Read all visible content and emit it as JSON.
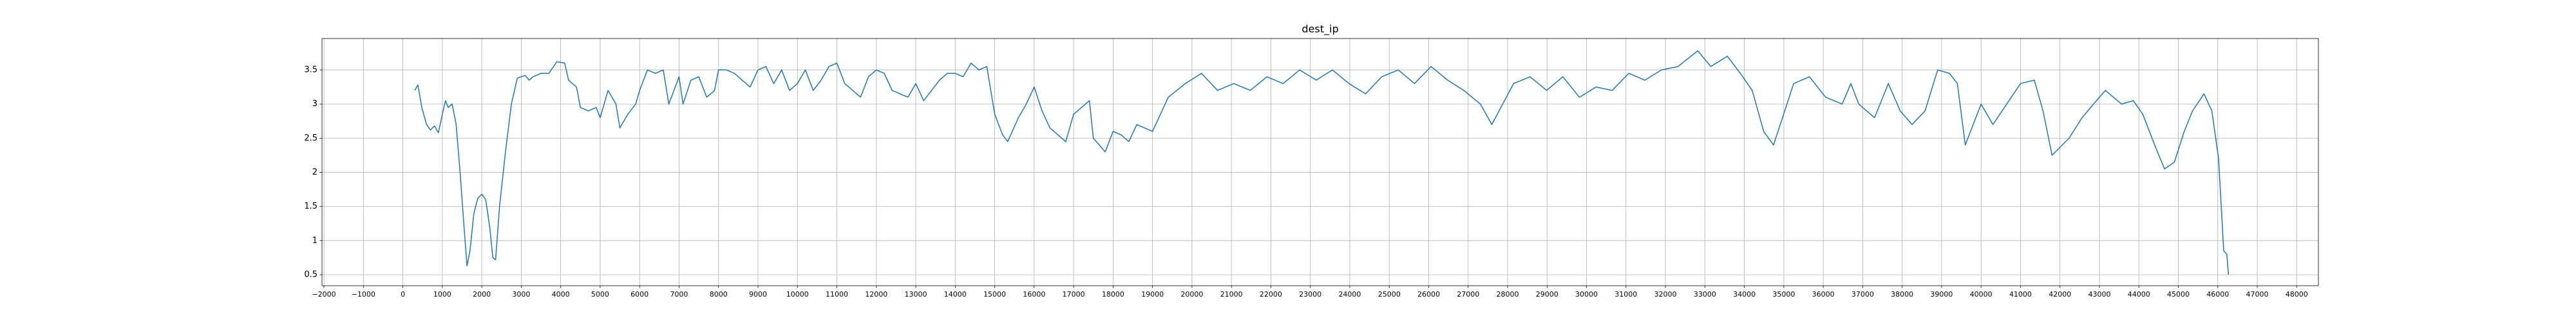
{
  "chart_data": {
    "type": "line",
    "title": "dest_ip",
    "x": [
      300,
      380,
      480,
      600,
      700,
      800,
      900,
      1000,
      1080,
      1150,
      1250,
      1350,
      1450,
      1550,
      1625,
      1700,
      1800,
      1900,
      2000,
      2100,
      2200,
      2280,
      2350,
      2450,
      2600,
      2750,
      2900,
      3100,
      3200,
      3300,
      3500,
      3700,
      3900,
      4100,
      4200,
      4400,
      4500,
      4700,
      4900,
      5000,
      5200,
      5400,
      5500,
      5700,
      5900,
      6000,
      6200,
      6400,
      6600,
      6740,
      7000,
      7100,
      7300,
      7500,
      7700,
      7900,
      8000,
      8200,
      8400,
      8600,
      8800,
      9000,
      9200,
      9400,
      9600,
      9800,
      10000,
      10200,
      10400,
      10600,
      10800,
      11000,
      11200,
      11400,
      11600,
      11800,
      12000,
      12200,
      12400,
      12600,
      12800,
      13000,
      13200,
      13400,
      13600,
      13800,
      14000,
      14200,
      14400,
      14600,
      14800,
      15000,
      15200,
      15330,
      15600,
      15800,
      16000,
      16200,
      16400,
      16600,
      16800,
      17000,
      17200,
      17400,
      17500,
      17800,
      18000,
      18200,
      18400,
      18600,
      19000,
      19400,
      19830,
      20240,
      20650,
      21060,
      21480,
      21900,
      22310,
      22730,
      23150,
      23560,
      23980,
      24400,
      24810,
      25230,
      25640,
      26060,
      26480,
      26890,
      27310,
      27600,
      28150,
      28570,
      28990,
      29400,
      29820,
      30240,
      30650,
      31070,
      31480,
      31900,
      32320,
      32820,
      33150,
      33570,
      33900,
      34200,
      34490,
      34740,
      35250,
      35650,
      36060,
      36480,
      36700,
      36900,
      37300,
      37650,
      37950,
      38250,
      38580,
      38900,
      39200,
      39400,
      39600,
      40000,
      40300,
      40650,
      41000,
      41350,
      41570,
      41800,
      42230,
      42560,
      42850,
      43150,
      43560,
      43860,
      44100,
      44400,
      44650,
      44900,
      45150,
      45360,
      45650,
      45850,
      46020,
      46150,
      46230,
      46270
    ],
    "values": [
      3.2,
      3.28,
      2.95,
      2.7,
      2.62,
      2.68,
      2.58,
      2.85,
      3.05,
      2.95,
      3.0,
      2.7,
      2.0,
      1.2,
      0.63,
      0.85,
      1.4,
      1.62,
      1.68,
      1.6,
      1.2,
      0.75,
      0.72,
      1.5,
      2.3,
      3.0,
      3.38,
      3.42,
      3.35,
      3.4,
      3.45,
      3.45,
      3.62,
      3.6,
      3.35,
      3.25,
      2.95,
      2.9,
      2.95,
      2.8,
      3.2,
      3.0,
      2.65,
      2.85,
      3.0,
      3.2,
      3.5,
      3.45,
      3.5,
      3.0,
      3.4,
      3.0,
      3.35,
      3.4,
      3.1,
      3.2,
      3.5,
      3.5,
      3.45,
      3.35,
      3.25,
      3.5,
      3.55,
      3.3,
      3.5,
      3.2,
      3.3,
      3.5,
      3.2,
      3.35,
      3.55,
      3.6,
      3.3,
      3.2,
      3.1,
      3.4,
      3.5,
      3.45,
      3.2,
      3.15,
      3.1,
      3.3,
      3.05,
      3.2,
      3.35,
      3.45,
      3.45,
      3.4,
      3.6,
      3.5,
      3.55,
      2.85,
      2.55,
      2.45,
      2.8,
      3.0,
      3.25,
      2.9,
      2.65,
      2.55,
      2.45,
      2.85,
      2.95,
      3.05,
      2.5,
      2.3,
      2.6,
      2.55,
      2.45,
      2.7,
      2.6,
      3.1,
      3.3,
      3.45,
      3.2,
      3.3,
      3.2,
      3.4,
      3.3,
      3.5,
      3.35,
      3.5,
      3.3,
      3.15,
      3.4,
      3.5,
      3.3,
      3.55,
      3.35,
      3.2,
      3.0,
      2.7,
      3.3,
      3.4,
      3.2,
      3.4,
      3.1,
      3.25,
      3.2,
      3.45,
      3.35,
      3.5,
      3.55,
      3.78,
      3.55,
      3.7,
      3.45,
      3.2,
      2.6,
      2.4,
      3.3,
      3.4,
      3.1,
      3.0,
      3.3,
      3.0,
      2.8,
      3.3,
      2.9,
      2.7,
      2.9,
      3.5,
      3.45,
      3.3,
      2.4,
      3.0,
      2.7,
      3.0,
      3.3,
      3.35,
      2.9,
      2.25,
      2.5,
      2.8,
      3.0,
      3.2,
      3.0,
      3.05,
      2.85,
      2.4,
      2.05,
      2.15,
      2.6,
      2.9,
      3.15,
      2.9,
      2.2,
      0.85,
      0.8,
      0.5
    ],
    "color": "#1f77b4",
    "xlim": [
      -2050,
      48550
    ],
    "xticks": [
      {
        "value": -2000,
        "label": "−2000"
      },
      {
        "value": -1000,
        "label": "−1000"
      },
      0,
      1000,
      2000,
      3000,
      4000,
      5000,
      6000,
      7000,
      8000,
      9000,
      10000,
      11000,
      12000,
      13000,
      14000,
      15000,
      16000,
      17000,
      18000,
      19000,
      20000,
      21000,
      22000,
      23000,
      24000,
      25000,
      26000,
      27000,
      28000,
      29000,
      30000,
      31000,
      32000,
      33000,
      34000,
      35000,
      36000,
      37000,
      38000,
      39000,
      40000,
      41000,
      42000,
      43000,
      44000,
      45000,
      46000,
      47000,
      48000
    ],
    "ylim": [
      0.34,
      3.96
    ],
    "yticks": [
      0.5,
      1.0,
      1.5,
      2.0,
      2.5,
      3.0,
      3.5
    ],
    "grid": true
  }
}
